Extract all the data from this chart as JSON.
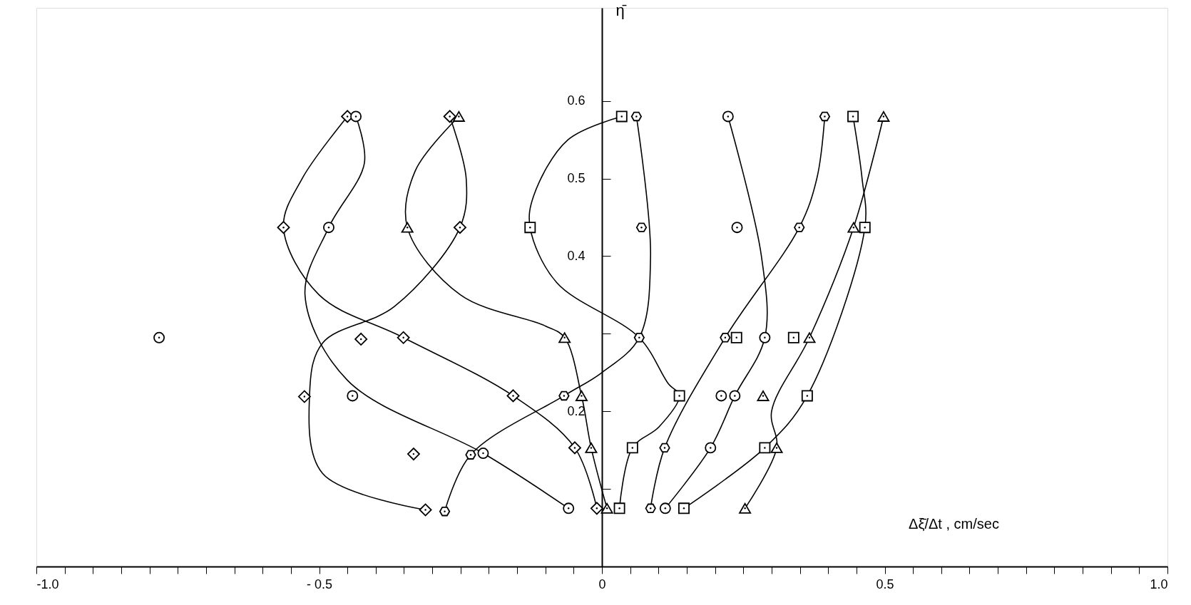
{
  "chart_data": {
    "type": "scatter",
    "xlabel": "Δξ̄/Δt , cm/sec",
    "ylabel": "η̄",
    "xlim": [
      -1.0,
      1.0
    ],
    "ylim": [
      0,
      0.72
    ],
    "xticks": [
      {
        "value": -1.0,
        "label": "-1.0"
      },
      {
        "value": -0.95,
        "label": null
      },
      {
        "value": -0.9,
        "label": null
      },
      {
        "value": -0.85,
        "label": null
      },
      {
        "value": -0.8,
        "label": null
      },
      {
        "value": -0.75,
        "label": null
      },
      {
        "value": -0.7,
        "label": null
      },
      {
        "value": -0.65,
        "label": null
      },
      {
        "value": -0.6,
        "label": null
      },
      {
        "value": -0.55,
        "label": null
      },
      {
        "value": -0.5,
        "label": "- 0.5"
      },
      {
        "value": -0.45,
        "label": null
      },
      {
        "value": -0.4,
        "label": null
      },
      {
        "value": -0.35,
        "label": null
      },
      {
        "value": -0.3,
        "label": null
      },
      {
        "value": -0.25,
        "label": null
      },
      {
        "value": -0.2,
        "label": null
      },
      {
        "value": -0.15,
        "label": null
      },
      {
        "value": -0.1,
        "label": null
      },
      {
        "value": -0.05,
        "label": null
      },
      0,
      {
        "value": 0.05,
        "label": null
      },
      {
        "value": 0.1,
        "label": null
      },
      {
        "value": 0.15,
        "label": null
      },
      {
        "value": 0.2,
        "label": null
      },
      {
        "value": 0.25,
        "label": null
      },
      {
        "value": 0.3,
        "label": null
      },
      {
        "value": 0.35,
        "label": null
      },
      {
        "value": 0.4,
        "label": null
      },
      {
        "value": 0.45,
        "label": null
      },
      0.5,
      {
        "value": 0.55,
        "label": null
      },
      {
        "value": 0.6,
        "label": null
      },
      {
        "value": 0.65,
        "label": null
      },
      {
        "value": 0.7,
        "label": null
      },
      {
        "value": 0.75,
        "label": null
      },
      {
        "value": 0.8,
        "label": null
      },
      {
        "value": 0.85,
        "label": null
      },
      {
        "value": 0.9,
        "label": null
      },
      {
        "value": 0.95,
        "label": null
      },
      {
        "value": 1.0,
        "label": "1.0"
      }
    ],
    "yticks": [
      {
        "value": 0.1,
        "label": null
      },
      0.2,
      {
        "value": 0.3,
        "label": null
      },
      0.4,
      0.5,
      0.6
    ],
    "grid": false,
    "series": [
      {
        "type": "line",
        "color": "#000000",
        "marker": "none",
        "x": [
          -0.45,
          -0.53,
          -0.563,
          -0.5,
          -0.351,
          -0.157,
          -0.048,
          -0.009
        ],
        "values": [
          0.58,
          0.5,
          0.437,
          0.35,
          0.295,
          0.22,
          0.153,
          0.075
        ]
      },
      {
        "type": "line",
        "color": "#000000",
        "marker": "none",
        "x": [
          -0.435,
          -0.42,
          -0.483,
          -0.525,
          -0.45,
          -0.21,
          -0.059
        ],
        "values": [
          0.58,
          0.52,
          0.437,
          0.35,
          0.24,
          0.146,
          0.075
        ]
      },
      {
        "type": "line",
        "color": "#000000",
        "marker": "none",
        "x": [
          -0.253,
          -0.33,
          -0.344,
          -0.25,
          -0.1,
          -0.066,
          -0.036,
          -0.019,
          0.009
        ],
        "values": [
          0.58,
          0.51,
          0.437,
          0.35,
          0.31,
          0.295,
          0.22,
          0.153,
          0.075
        ]
      },
      {
        "type": "line",
        "color": "#000000",
        "marker": "none",
        "x": [
          -0.269,
          -0.24,
          -0.251,
          -0.367,
          -0.494,
          -0.517,
          -0.494,
          -0.312
        ],
        "values": [
          0.58,
          0.5,
          0.437,
          0.335,
          0.288,
          0.221,
          0.12,
          0.073
        ]
      },
      {
        "type": "line",
        "color": "#000000",
        "marker": "none",
        "x": [
          -0.278,
          -0.232,
          -0.067,
          0.0,
          0.066,
          0.086,
          0.061
        ],
        "values": [
          0.071,
          0.144,
          0.22,
          0.25,
          0.295,
          0.4,
          0.58
        ]
      },
      {
        "type": "line",
        "color": "#000000",
        "marker": "none",
        "x": [
          0.035,
          -0.06,
          -0.121,
          -0.127,
          -0.08,
          0.066,
          0.117,
          0.137,
          0.101,
          0.054,
          0.031
        ],
        "values": [
          0.58,
          0.55,
          0.477,
          0.437,
          0.366,
          0.295,
          0.236,
          0.22,
          0.18,
          0.153,
          0.075
        ]
      },
      {
        "type": "line",
        "color": "#000000",
        "marker": "none",
        "x": [
          0.223,
          0.282,
          0.288,
          0.235,
          0.192,
          0.112
        ],
        "values": [
          0.58,
          0.4,
          0.295,
          0.22,
          0.153,
          0.075
        ]
      },
      {
        "type": "line",
        "color": "#000000",
        "marker": "none",
        "x": [
          0.394,
          0.38,
          0.349,
          0.218,
          0.111,
          0.086
        ],
        "values": [
          0.58,
          0.5,
          0.437,
          0.295,
          0.153,
          0.075
        ]
      },
      {
        "type": "line",
        "color": "#000000",
        "marker": "none",
        "x": [
          0.444,
          0.46,
          0.465,
          0.363,
          0.288,
          0.145
        ],
        "values": [
          0.58,
          0.5,
          0.437,
          0.22,
          0.153,
          0.075
        ]
      },
      {
        "type": "line",
        "color": "#000000",
        "marker": "none",
        "x": [
          0.498,
          0.445,
          0.367,
          0.3,
          0.309,
          0.253
        ],
        "values": [
          0.58,
          0.437,
          0.295,
          0.2,
          0.153,
          0.075
        ]
      },
      {
        "color": "#000000",
        "marker": "diamond",
        "x": [
          -0.45,
          -0.269,
          -0.563,
          -0.251,
          -0.426,
          -0.351,
          -0.526,
          -0.157,
          -0.333,
          -0.048,
          -0.312,
          -0.009
        ],
        "values": [
          0.58,
          0.58,
          0.437,
          0.437,
          0.293,
          0.295,
          0.219,
          0.22,
          0.145,
          0.153,
          0.073,
          0.075
        ]
      },
      {
        "color": "#000000",
        "marker": "circle",
        "x": [
          -0.435,
          0.223,
          -0.483,
          0.239,
          -0.783,
          0.288,
          -0.441,
          0.211,
          0.235,
          -0.21,
          0.192,
          -0.059,
          0.112
        ],
        "values": [
          0.58,
          0.58,
          0.437,
          0.437,
          0.295,
          0.295,
          0.22,
          0.22,
          0.22,
          0.146,
          0.153,
          0.075,
          0.075
        ]
      },
      {
        "color": "#000000",
        "marker": "triangle",
        "x": [
          -0.253,
          0.498,
          -0.344,
          0.445,
          -0.066,
          0.367,
          -0.036,
          0.285,
          -0.019,
          0.309,
          0.009,
          0.253
        ],
        "values": [
          0.58,
          0.58,
          0.437,
          0.437,
          0.295,
          0.295,
          0.22,
          0.22,
          0.153,
          0.153,
          0.075,
          0.075
        ]
      },
      {
        "color": "#000000",
        "marker": "square",
        "x": [
          0.035,
          0.444,
          -0.127,
          0.465,
          0.238,
          0.339,
          0.137,
          0.363,
          0.054,
          0.288,
          0.031,
          0.145
        ],
        "values": [
          0.58,
          0.58,
          0.437,
          0.437,
          0.295,
          0.295,
          0.22,
          0.22,
          0.153,
          0.153,
          0.075,
          0.075
        ]
      },
      {
        "color": "#000000",
        "x": [
          0.061,
          0.394,
          0.07,
          0.349,
          0.066,
          0.218,
          -0.067,
          -0.232,
          0.111,
          -0.278,
          0.086
        ],
        "values": [
          0.58,
          0.58,
          0.437,
          0.437,
          0.295,
          0.295,
          0.22,
          0.144,
          0.153,
          0.071,
          0.075
        ]
      }
    ]
  }
}
